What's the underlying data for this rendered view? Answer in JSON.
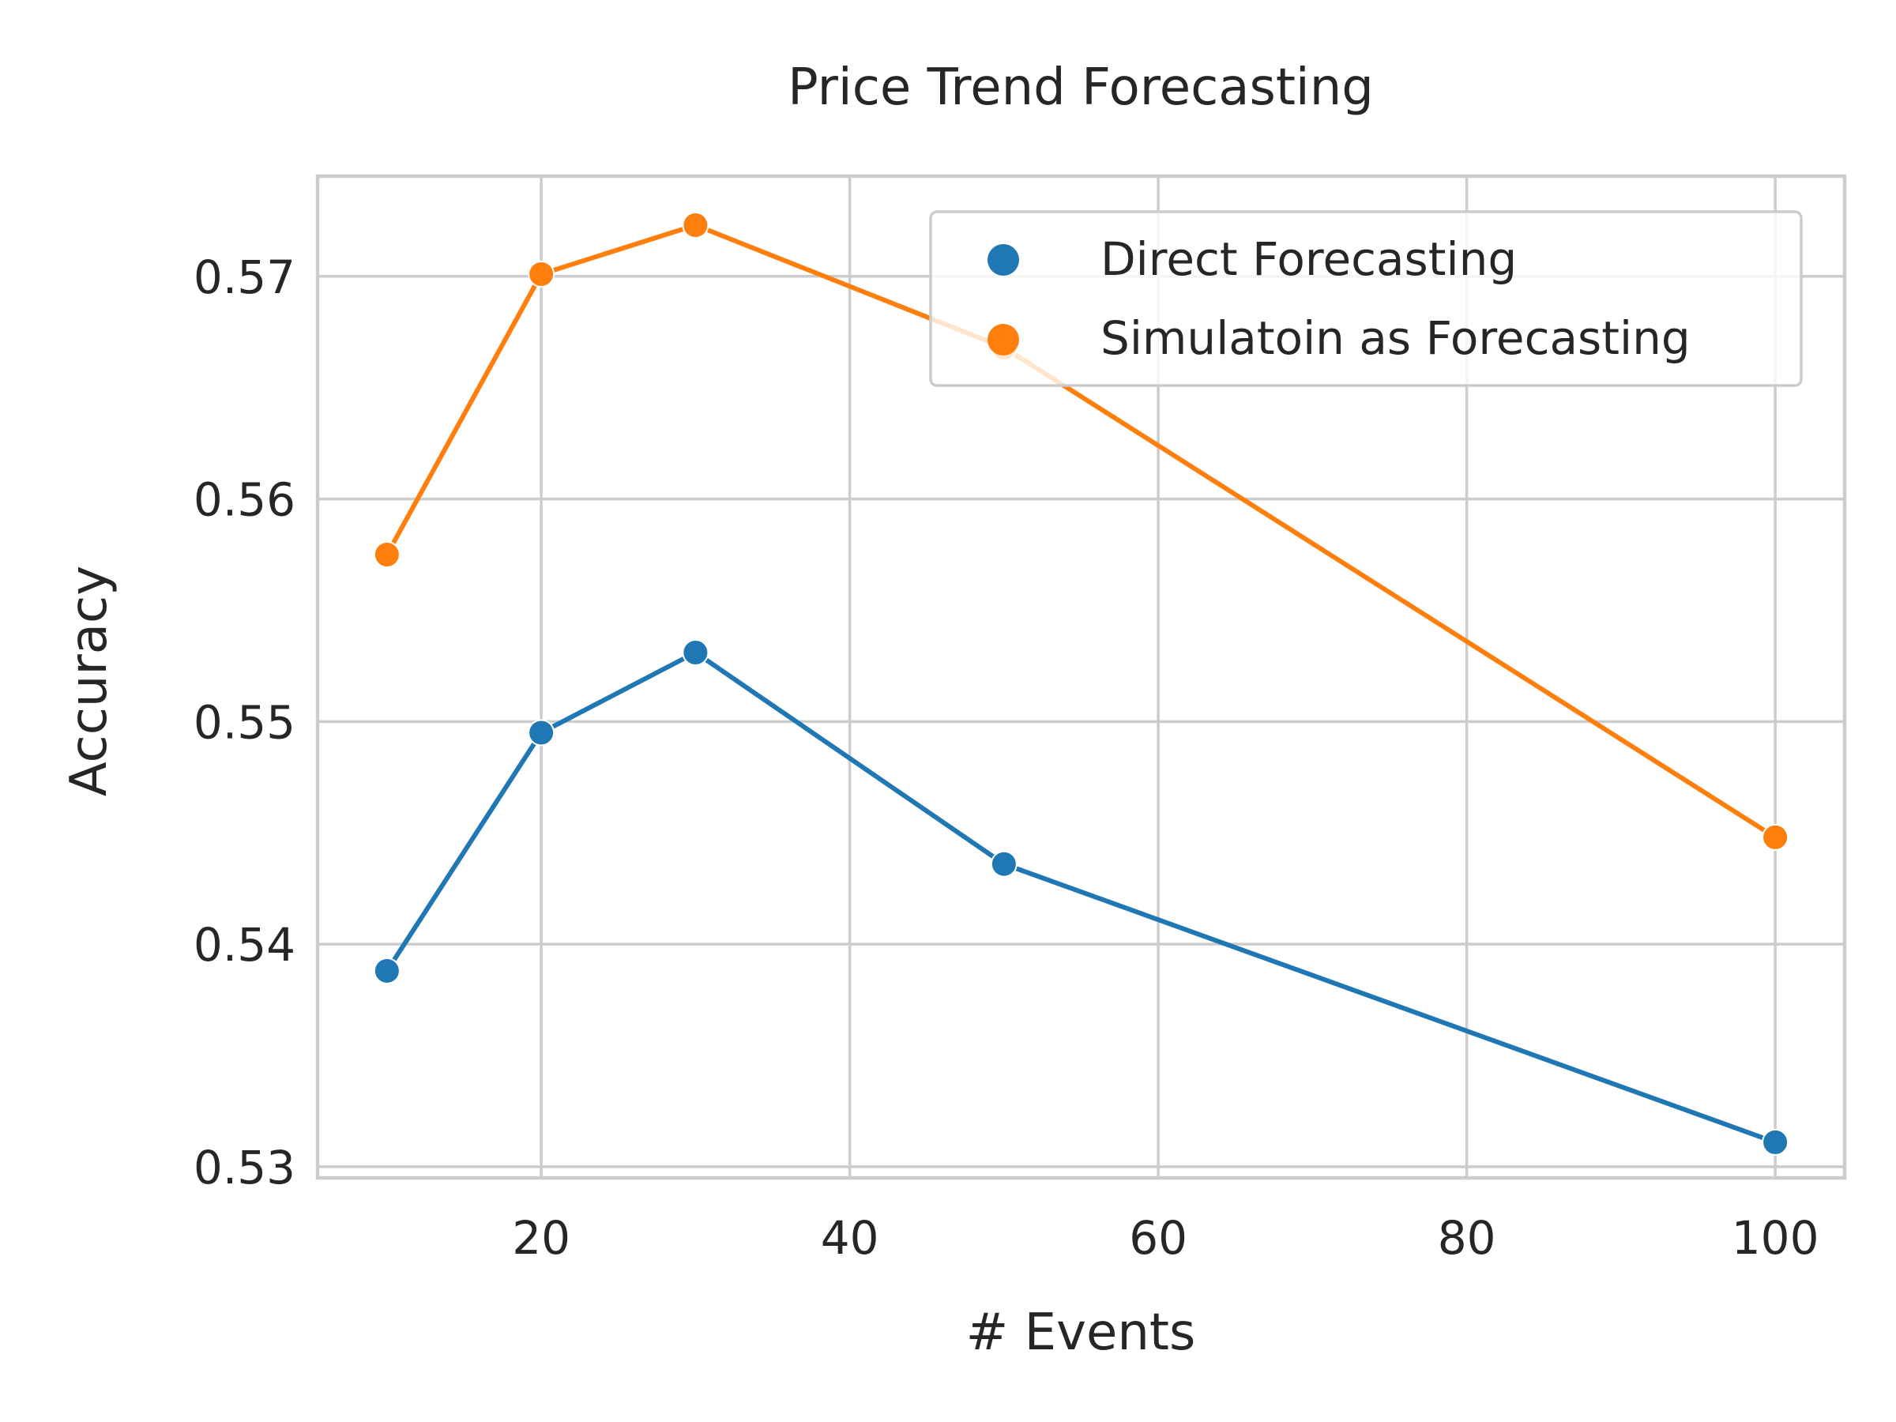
{
  "chart_data": {
    "type": "line",
    "title": "Price Trend Forecasting",
    "xlabel": "# Events",
    "ylabel": "Accuracy",
    "xlim": [
      5.5,
      104.5
    ],
    "ylim": [
      0.5295,
      0.5745
    ],
    "xticks": [
      20,
      40,
      60,
      80,
      100
    ],
    "xtick_labels": [
      "20",
      "40",
      "60",
      "80",
      "100"
    ],
    "yticks": [
      0.53,
      0.54,
      0.55,
      0.56,
      0.57
    ],
    "ytick_labels": [
      "0.53",
      "0.54",
      "0.55",
      "0.56",
      "0.57"
    ],
    "grid": true,
    "legend_position": "top-right",
    "x": [
      10,
      20,
      30,
      50,
      100
    ],
    "series": [
      {
        "name": "Direct Forecasting",
        "color": "#1f77b4",
        "values": [
          0.5388,
          0.5495,
          0.5531,
          0.5436,
          0.5311
        ]
      },
      {
        "name": "Simulatoin as Forecasting",
        "color": "#ff7f0e",
        "values": [
          0.5575,
          0.5701,
          0.5723,
          0.5668,
          0.5448
        ]
      }
    ]
  }
}
